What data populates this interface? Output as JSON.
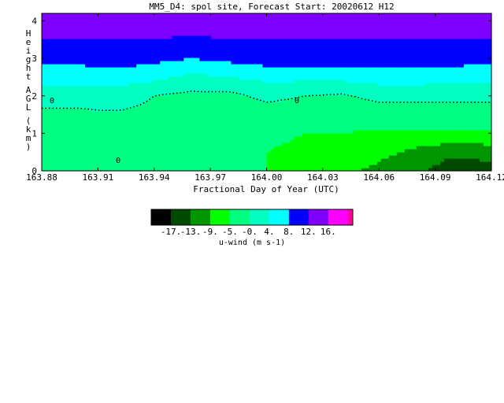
{
  "chart_data": {
    "type": "heatmap",
    "title": "MM5_D4: spol site,  Forecast Start: 20020612 H12",
    "xlabel": "Fractional Day of Year (UTC)",
    "ylabel": "Height AGL (km)",
    "xlim": [
      163.88,
      164.12
    ],
    "ylim": [
      0,
      4.2
    ],
    "xticks": [
      "163.88",
      "163.91",
      "163.94",
      "163.97",
      "164.00",
      "164.03",
      "164.06",
      "164.09",
      "164.12"
    ],
    "yticks": [
      "0",
      "1",
      "2",
      "3",
      "4"
    ],
    "colorbar": {
      "label": "u-wind (m s-1)",
      "levels": [
        -17,
        -13,
        -9,
        -5,
        0,
        4,
        8,
        12,
        16
      ],
      "level_labels": [
        "-17.",
        "-13.",
        "-9.",
        "-5.",
        "-0.",
        "4.",
        "8.",
        "12.",
        "16."
      ],
      "colors": [
        "#000000",
        "#004a00",
        "#009600",
        "#00ff00",
        "#00ff80",
        "#00ffc0",
        "#00ffff",
        "#0000ff",
        "#8000ff",
        "#ff00ff",
        "#ff00a0"
      ]
    },
    "times": [
      163.88,
      163.9,
      163.92,
      163.94,
      163.96,
      163.98,
      164.0,
      164.02,
      164.04,
      164.06,
      164.08,
      164.1,
      164.12
    ],
    "heights": [
      0,
      0.5,
      1.0,
      1.5,
      2.0,
      2.5,
      3.0,
      3.5,
      4.0,
      4.2
    ],
    "u_wind": [
      [
        -3,
        -3,
        0,
        -3,
        -4,
        -4,
        -5,
        -6,
        -8,
        -10,
        -12,
        -16,
        -15
      ],
      [
        -2,
        -2,
        0,
        -2,
        -4,
        -4,
        -5,
        -6,
        -7,
        -8,
        -10,
        -12,
        -11
      ],
      [
        -1,
        -1,
        -1,
        -1,
        -4,
        -4,
        -4,
        -5,
        -5,
        -6,
        -6,
        -6,
        -6
      ],
      [
        -0.5,
        -0.5,
        -0.5,
        -1,
        -2,
        -2,
        -2,
        -2,
        -2,
        -2,
        -2,
        -2,
        -2
      ],
      [
        1,
        1,
        2,
        0,
        -1,
        -1,
        1,
        0,
        -0.5,
        1,
        1,
        1,
        1
      ],
      [
        6,
        6,
        6,
        5,
        3,
        4,
        5,
        5,
        5,
        6,
        6,
        5,
        5
      ],
      [
        9,
        9,
        10,
        9,
        8,
        9,
        10,
        10,
        10,
        10,
        10,
        10,
        9
      ],
      [
        12,
        12,
        12,
        12,
        11,
        12,
        12,
        12,
        12,
        12,
        12,
        12,
        12
      ],
      [
        15,
        15,
        15,
        15,
        15,
        15,
        15,
        15,
        15,
        15,
        15,
        15,
        15
      ],
      [
        15,
        15,
        15,
        15,
        15,
        15,
        15,
        15,
        15,
        15,
        15,
        15,
        15
      ]
    ],
    "contour_labels": [
      "0",
      "0",
      "0"
    ],
    "legend": "bottom",
    "grid": false
  }
}
